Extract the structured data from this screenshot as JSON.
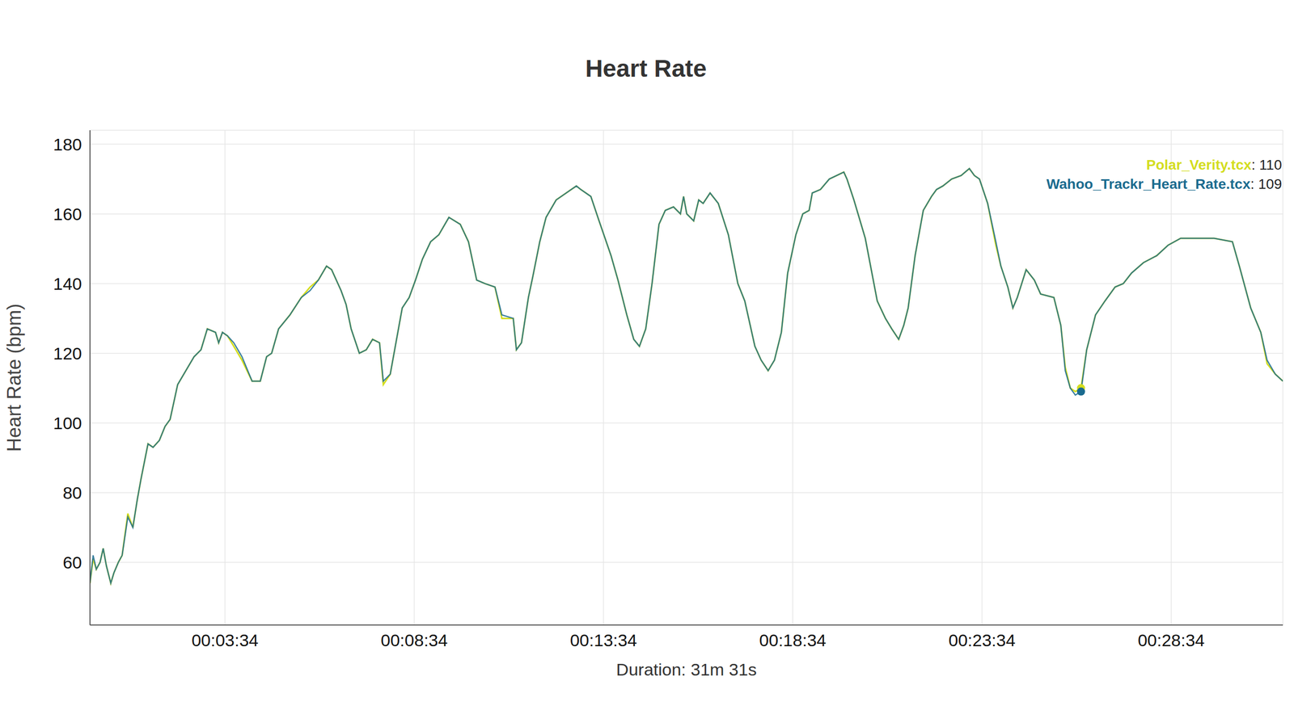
{
  "chart_data": {
    "type": "line",
    "title": "Heart Rate",
    "x_label": "Duration: 31m 31s",
    "y_label": "Heart Rate (bpm)",
    "x": [
      0,
      5,
      10,
      16,
      21,
      26,
      33,
      38,
      45,
      51,
      60,
      68,
      75,
      81,
      92,
      100,
      110,
      119,
      127,
      139,
      152,
      165,
      176,
      186,
      199,
      204,
      210,
      218,
      228,
      241,
      257,
      270,
      280,
      288,
      299,
      317,
      335,
      349,
      362,
      375,
      383,
      398,
      406,
      414,
      427,
      438,
      448,
      459,
      465,
      476,
      485,
      495,
      506,
      516,
      527,
      540,
      553,
      569,
      587,
      600,
      613,
      626,
      642,
      653,
      671,
      676,
      684,
      695,
      702,
      713,
      723,
      739,
      763,
      771,
      778,
      794,
      807,
      826,
      837,
      851,
      862,
      871,
      881,
      891,
      902,
      912,
      925,
      936,
      941,
      946,
      957,
      965,
      972,
      983,
      996,
      1012,
      1027,
      1038,
      1054,
      1064,
      1075,
      1085,
      1096,
      1106,
      1119,
      1130,
      1140,
      1145,
      1158,
      1172,
      1195,
      1200,
      1211,
      1229,
      1248,
      1261,
      1271,
      1282,
      1290,
      1297,
      1308,
      1321,
      1334,
      1342,
      1352,
      1366,
      1381,
      1394,
      1402,
      1410,
      1423,
      1436,
      1444,
      1455,
      1463,
      1470,
      1484,
      1497,
      1507,
      1528,
      1539,
      1546,
      1554,
      1562,
      1571,
      1580,
      1594,
      1609,
      1625,
      1638,
      1651,
      1670,
      1691,
      1709,
      1729,
      1748,
      1782,
      1811,
      1822,
      1840,
      1856,
      1866,
      1879,
      1891
    ],
    "xlim": [
      0,
      1891
    ],
    "xticks": [
      {
        "value": 214,
        "label": "00:03:34"
      },
      {
        "value": 514,
        "label": "00:08:34"
      },
      {
        "value": 814,
        "label": "00:13:34"
      },
      {
        "value": 1114,
        "label": "00:18:34"
      },
      {
        "value": 1414,
        "label": "00:23:34"
      },
      {
        "value": 1714,
        "label": "00:28:34"
      }
    ],
    "ylim": [
      42,
      184
    ],
    "yticks": [
      60,
      80,
      100,
      120,
      140,
      160,
      180
    ],
    "grid": true,
    "legend": "top-right",
    "series": [
      {
        "name": "Polar_Verity.tcx",
        "color": "#d4dd1e",
        "values": [
          54,
          61,
          58,
          60,
          64,
          59,
          54,
          57,
          60,
          62,
          74,
          70,
          78,
          84,
          94,
          93,
          95,
          99,
          101,
          111,
          115,
          119,
          121,
          127,
          126,
          123,
          126,
          125,
          122,
          118,
          112,
          112,
          119,
          120,
          127,
          131,
          136,
          139,
          141,
          145,
          144,
          138,
          134,
          127,
          120,
          121,
          124,
          123,
          111,
          114,
          123,
          133,
          136,
          141,
          147,
          152,
          154,
          159,
          157,
          152,
          141,
          140,
          139,
          130,
          130,
          121,
          123,
          136,
          142,
          152,
          159,
          164,
          167,
          168,
          167,
          165,
          158,
          148,
          141,
          131,
          124,
          122,
          127,
          140,
          157,
          161,
          162,
          160,
          165,
          160,
          158,
          164,
          163,
          166,
          163,
          154,
          140,
          135,
          122,
          118,
          115,
          118,
          126,
          143,
          154,
          160,
          161,
          166,
          167,
          170,
          172,
          170,
          164,
          153,
          135,
          130,
          127,
          124,
          128,
          133,
          148,
          161,
          165,
          167,
          168,
          170,
          171,
          173,
          171,
          170,
          163,
          151,
          145,
          139,
          133,
          136,
          144,
          141,
          137,
          136,
          128,
          116,
          110,
          109,
          110,
          121,
          131,
          135,
          139,
          140,
          143,
          146,
          148,
          151,
          153,
          153,
          153,
          152,
          145,
          133,
          126,
          117,
          114,
          112
        ]
      },
      {
        "name": "Wahoo_Trackr_Heart_Rate.tcx",
        "color": "#1a6b8f",
        "values": [
          54,
          62,
          58,
          60,
          64,
          59,
          54,
          57,
          60,
          62,
          73,
          70,
          78,
          84,
          94,
          93,
          95,
          99,
          101,
          111,
          115,
          119,
          121,
          127,
          126,
          123,
          126,
          125,
          123,
          119,
          112,
          112,
          119,
          120,
          127,
          131,
          136,
          138,
          141,
          145,
          144,
          138,
          134,
          127,
          120,
          121,
          124,
          123,
          112,
          114,
          123,
          133,
          136,
          141,
          147,
          152,
          154,
          159,
          157,
          152,
          141,
          140,
          139,
          131,
          130,
          121,
          123,
          136,
          142,
          152,
          159,
          164,
          167,
          168,
          167,
          165,
          158,
          148,
          141,
          131,
          124,
          122,
          127,
          140,
          157,
          161,
          162,
          160,
          165,
          160,
          158,
          164,
          163,
          166,
          163,
          154,
          140,
          135,
          122,
          118,
          115,
          118,
          126,
          143,
          154,
          160,
          161,
          166,
          167,
          170,
          172,
          170,
          164,
          153,
          135,
          130,
          127,
          124,
          128,
          133,
          148,
          161,
          165,
          167,
          168,
          170,
          171,
          173,
          171,
          170,
          163,
          152,
          145,
          139,
          133,
          136,
          144,
          141,
          137,
          136,
          128,
          115,
          110,
          108,
          109,
          121,
          131,
          135,
          139,
          140,
          143,
          146,
          148,
          151,
          153,
          153,
          153,
          152,
          145,
          133,
          126,
          118,
          114,
          112
        ]
      }
    ],
    "highlight": {
      "x": 1571,
      "values": [
        110,
        109
      ]
    }
  }
}
